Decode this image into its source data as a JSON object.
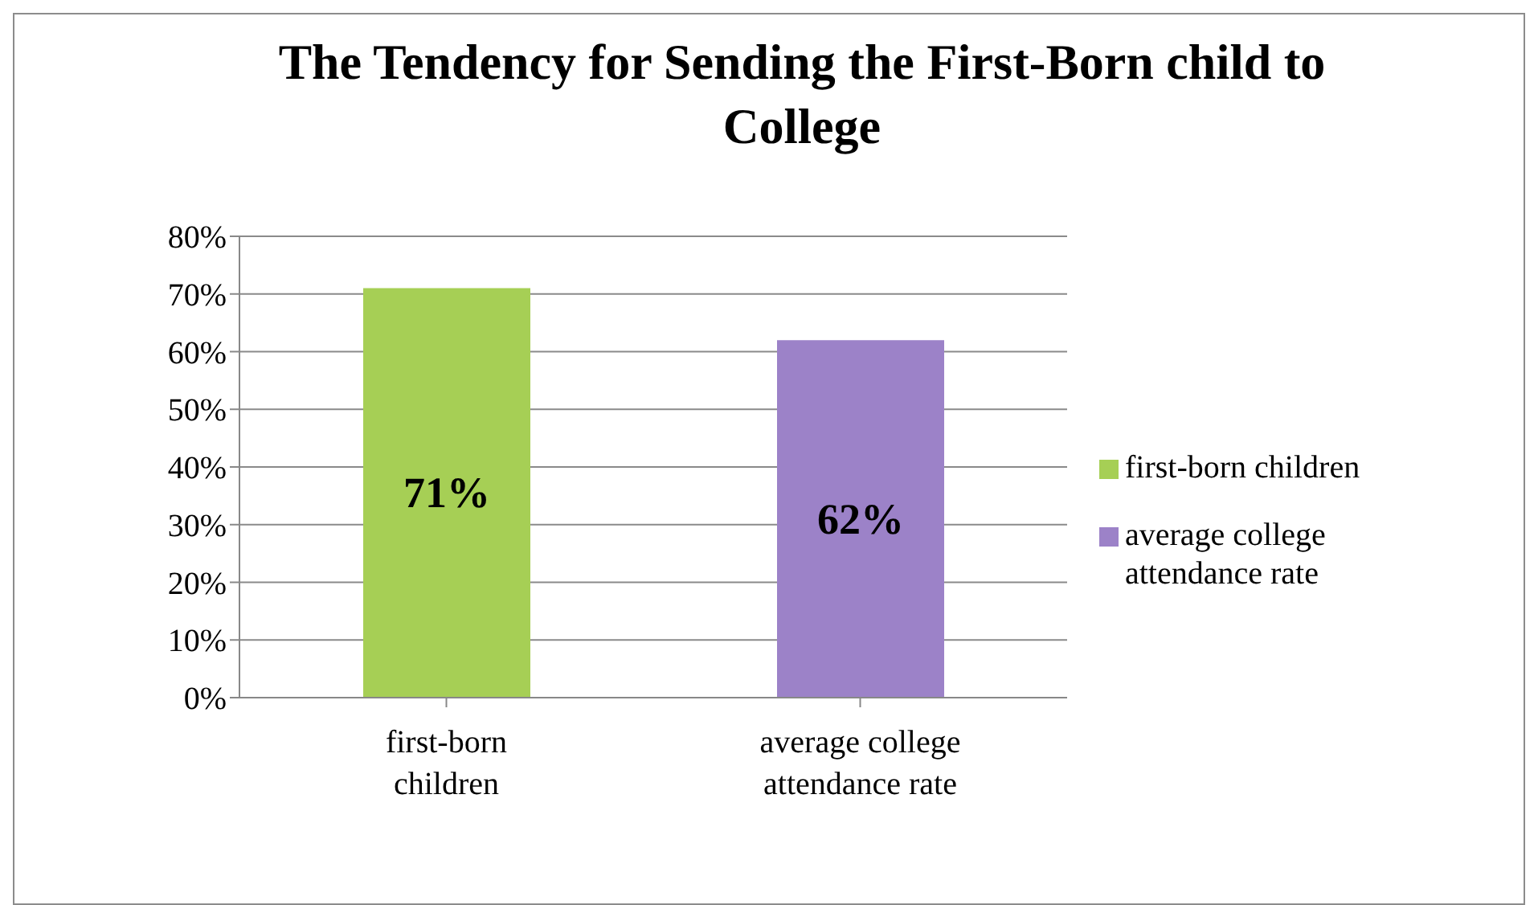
{
  "chart_data": {
    "type": "bar",
    "title": "The Tendency for Sending the First-Born child to College",
    "categories": [
      "first-born children",
      "average college attendance rate"
    ],
    "series": [
      {
        "name": "first-born children",
        "color": "#a6cf55",
        "values": [
          71,
          null
        ],
        "value_labels": [
          "71%",
          null
        ]
      },
      {
        "name": "average college attendance rate",
        "color": "#9c82c8",
        "values": [
          null,
          62
        ],
        "value_labels": [
          null,
          "62%"
        ]
      }
    ],
    "ylim": [
      0,
      80
    ],
    "yticks": [
      {
        "value": 0,
        "label": "0%"
      },
      {
        "value": 10,
        "label": "10%"
      },
      {
        "value": 20,
        "label": "20%"
      },
      {
        "value": 30,
        "label": "30%"
      },
      {
        "value": 40,
        "label": "40%"
      },
      {
        "value": 50,
        "label": "50%"
      },
      {
        "value": 60,
        "label": "60%"
      },
      {
        "value": 70,
        "label": "70%"
      },
      {
        "value": 80,
        "label": "80%"
      }
    ],
    "grid": "y",
    "legend": "right"
  }
}
